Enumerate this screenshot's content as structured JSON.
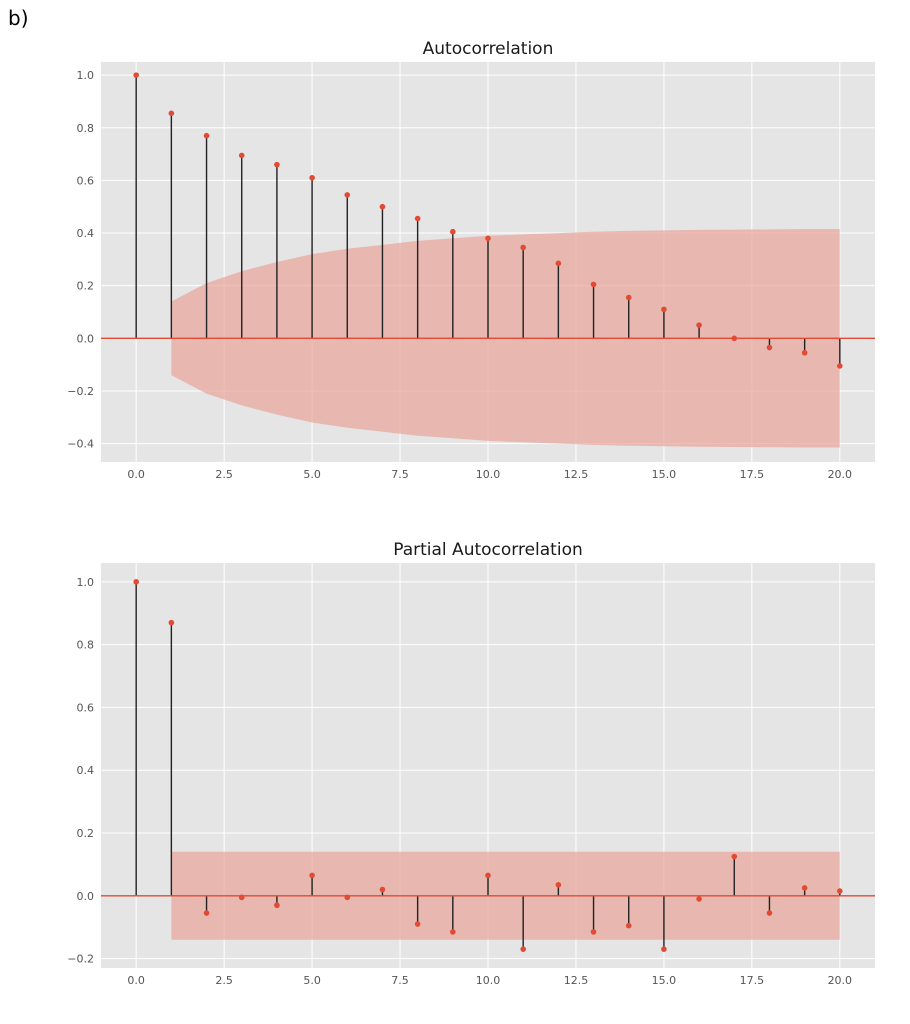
{
  "panel_label": "b)",
  "chart_data": [
    {
      "type": "stem",
      "title": "Autocorrelation",
      "xlabel": "",
      "ylabel": "",
      "xlim": [
        -1,
        21
      ],
      "ylim": [
        -0.47,
        1.05
      ],
      "xticks": [
        0,
        2.5,
        5,
        7.5,
        10,
        12.5,
        15,
        17.5,
        20
      ],
      "xtick_labels": [
        "0.0",
        "2.5",
        "5.0",
        "7.5",
        "10.0",
        "12.5",
        "15.0",
        "17.5",
        "20.0"
      ],
      "yticks": [
        -0.4,
        -0.2,
        0.0,
        0.2,
        0.4,
        0.6,
        0.8,
        1.0
      ],
      "ytick_labels": [
        "−0.4",
        "−0.2",
        "0.0",
        "0.2",
        "0.4",
        "0.6",
        "0.8",
        "1.0"
      ],
      "grid": true,
      "x": [
        0,
        1,
        2,
        3,
        4,
        5,
        6,
        7,
        8,
        9,
        10,
        11,
        12,
        13,
        14,
        15,
        16,
        17,
        18,
        19,
        20
      ],
      "values": [
        1.0,
        0.855,
        0.77,
        0.695,
        0.66,
        0.61,
        0.545,
        0.5,
        0.455,
        0.405,
        0.38,
        0.345,
        0.285,
        0.205,
        0.155,
        0.11,
        0.05,
        0.0,
        -0.035,
        -0.055,
        -0.105
      ],
      "confidence_band": {
        "x": [
          1,
          2,
          3,
          4,
          5,
          6,
          7,
          8,
          9,
          10,
          11,
          12,
          13,
          14,
          15,
          16,
          17,
          18,
          19,
          20
        ],
        "upper": [
          0.14,
          0.21,
          0.255,
          0.29,
          0.32,
          0.34,
          0.355,
          0.37,
          0.38,
          0.39,
          0.395,
          0.4,
          0.405,
          0.408,
          0.41,
          0.412,
          0.413,
          0.414,
          0.415,
          0.415
        ]
      },
      "colors": {
        "marker": "#e24a33",
        "stem": "#222222",
        "band": "#e8a49a",
        "zero_line": "#e24a33",
        "background": "#e5e5e5",
        "grid": "#ffffff"
      }
    },
    {
      "type": "stem",
      "title": "Partial Autocorrelation",
      "xlabel": "",
      "ylabel": "",
      "xlim": [
        -1,
        21
      ],
      "ylim": [
        -0.23,
        1.06
      ],
      "xticks": [
        0,
        2.5,
        5,
        7.5,
        10,
        12.5,
        15,
        17.5,
        20
      ],
      "xtick_labels": [
        "0.0",
        "2.5",
        "5.0",
        "7.5",
        "10.0",
        "12.5",
        "15.0",
        "17.5",
        "20.0"
      ],
      "yticks": [
        -0.2,
        0.0,
        0.2,
        0.4,
        0.6,
        0.8,
        1.0
      ],
      "ytick_labels": [
        "−0.2",
        "0.0",
        "0.2",
        "0.4",
        "0.6",
        "0.8",
        "1.0"
      ],
      "grid": true,
      "x": [
        0,
        1,
        2,
        3,
        4,
        5,
        6,
        7,
        8,
        9,
        10,
        11,
        12,
        13,
        14,
        15,
        16,
        17,
        18,
        19,
        20
      ],
      "values": [
        1.0,
        0.87,
        -0.055,
        -0.005,
        -0.03,
        0.065,
        -0.005,
        0.02,
        -0.09,
        -0.115,
        0.065,
        -0.17,
        0.035,
        -0.115,
        -0.095,
        -0.17,
        -0.01,
        0.125,
        -0.055,
        0.025,
        0.015
      ],
      "confidence_band": {
        "x": [
          1,
          20
        ],
        "upper": [
          0.14,
          0.14
        ]
      },
      "colors": {
        "marker": "#e24a33",
        "stem": "#222222",
        "band": "#e8a49a",
        "zero_line": "#e24a33",
        "background": "#e5e5e5",
        "grid": "#ffffff"
      }
    }
  ]
}
